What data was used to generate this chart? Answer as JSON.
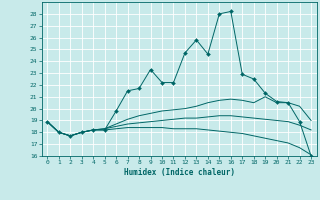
{
  "xlabel": "Humidex (Indice chaleur)",
  "ylabel": "",
  "bg_color": "#c8eaea",
  "grid_color": "#ffffff",
  "line_color": "#006666",
  "xlim": [
    -0.5,
    23.5
  ],
  "ylim": [
    16,
    29
  ],
  "yticks": [
    16,
    17,
    18,
    19,
    20,
    21,
    22,
    23,
    24,
    25,
    26,
    27,
    28
  ],
  "xticks": [
    0,
    1,
    2,
    3,
    4,
    5,
    6,
    7,
    8,
    9,
    10,
    11,
    12,
    13,
    14,
    15,
    16,
    17,
    18,
    19,
    20,
    21,
    22,
    23
  ],
  "series": [
    {
      "x": [
        0,
        1,
        2,
        3,
        4,
        5,
        6,
        7,
        8,
        9,
        10,
        11,
        12,
        13,
        14,
        15,
        16,
        17,
        18,
        19,
        20,
        21,
        22,
        23
      ],
      "y": [
        18.9,
        18.0,
        17.7,
        18.0,
        18.2,
        18.2,
        19.8,
        21.5,
        21.7,
        23.3,
        22.2,
        22.2,
        24.7,
        25.8,
        24.6,
        28.0,
        28.2,
        22.9,
        22.5,
        21.3,
        20.6,
        20.5,
        18.9,
        16.0
      ],
      "marker": true
    },
    {
      "x": [
        0,
        1,
        2,
        3,
        4,
        5,
        6,
        7,
        8,
        9,
        10,
        11,
        12,
        13,
        14,
        15,
        16,
        17,
        18,
        19,
        20,
        21,
        22,
        23
      ],
      "y": [
        18.9,
        18.0,
        17.7,
        18.0,
        18.2,
        18.3,
        18.7,
        19.1,
        19.4,
        19.6,
        19.8,
        19.9,
        20.0,
        20.2,
        20.5,
        20.7,
        20.8,
        20.7,
        20.5,
        21.0,
        20.5,
        20.5,
        20.2,
        19.0
      ],
      "marker": false
    },
    {
      "x": [
        0,
        1,
        2,
        3,
        4,
        5,
        6,
        7,
        8,
        9,
        10,
        11,
        12,
        13,
        14,
        15,
        16,
        17,
        18,
        19,
        20,
        21,
        22,
        23
      ],
      "y": [
        18.9,
        18.0,
        17.7,
        18.0,
        18.2,
        18.3,
        18.5,
        18.7,
        18.8,
        18.9,
        19.0,
        19.1,
        19.2,
        19.2,
        19.3,
        19.4,
        19.4,
        19.3,
        19.2,
        19.1,
        19.0,
        18.9,
        18.6,
        18.2
      ],
      "marker": false
    },
    {
      "x": [
        0,
        1,
        2,
        3,
        4,
        5,
        6,
        7,
        8,
        9,
        10,
        11,
        12,
        13,
        14,
        15,
        16,
        17,
        18,
        19,
        20,
        21,
        22,
        23
      ],
      "y": [
        18.9,
        18.0,
        17.7,
        18.0,
        18.2,
        18.2,
        18.3,
        18.4,
        18.4,
        18.4,
        18.4,
        18.3,
        18.3,
        18.3,
        18.2,
        18.1,
        18.0,
        17.9,
        17.7,
        17.5,
        17.3,
        17.1,
        16.7,
        16.1
      ],
      "marker": false
    }
  ]
}
